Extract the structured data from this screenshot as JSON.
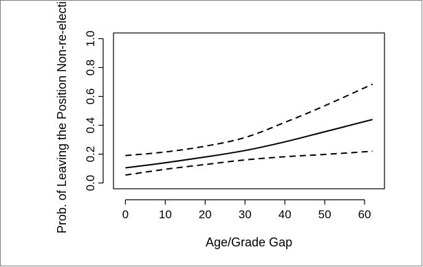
{
  "chart_data": {
    "type": "line",
    "title": "",
    "xlabel": "Age/Grade Gap",
    "ylabel": "Prob. of Leaving the Position Non-re-election",
    "xlim": [
      -3,
      65
    ],
    "ylim": [
      -0.04,
      1.04
    ],
    "x_ticks": [
      0,
      10,
      20,
      30,
      40,
      50,
      60
    ],
    "x_tick_labels": [
      "0",
      "10",
      "20",
      "30",
      "40",
      "50",
      "60"
    ],
    "y_ticks": [
      0.0,
      0.2,
      0.4,
      0.6,
      0.8,
      1.0
    ],
    "y_tick_labels": [
      "0.0",
      "0.2",
      "0.4",
      "0.6",
      "0.8",
      "1.0"
    ],
    "grid": false,
    "x": [
      0,
      10,
      20,
      30,
      40,
      50,
      62
    ],
    "series": [
      {
        "role": "estimate",
        "style": "solid",
        "values": [
          0.105,
          0.14,
          0.18,
          0.225,
          0.285,
          0.355,
          0.44
        ]
      },
      {
        "role": "upper-bound",
        "style": "dashed",
        "values": [
          0.19,
          0.215,
          0.255,
          0.315,
          0.42,
          0.535,
          0.685
        ]
      },
      {
        "role": "lower-bound",
        "style": "dashed",
        "values": [
          0.055,
          0.095,
          0.128,
          0.16,
          0.182,
          0.198,
          0.22
        ]
      }
    ]
  }
}
